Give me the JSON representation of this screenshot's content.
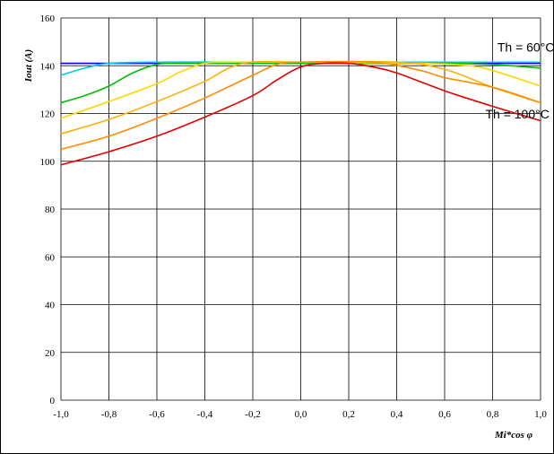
{
  "chart_data": {
    "type": "line",
    "xlabel": "Mi*cos φ",
    "ylabel": "Iout (A)",
    "xlim": [
      -1.0,
      1.0
    ],
    "ylim": [
      0,
      160
    ],
    "xticks": [
      "-1,0",
      "-0,8",
      "-0,6",
      "-0,4",
      "-0,2",
      "0,0",
      "0,2",
      "0,4",
      "0,6",
      "0,8",
      "1,0"
    ],
    "yticks": [
      "0",
      "20",
      "40",
      "60",
      "80",
      "100",
      "120",
      "140",
      "160"
    ],
    "grid": true,
    "annotations": [
      {
        "text": "Th = 60°C",
        "x": 0.82,
        "y": 146
      },
      {
        "text": "Th = 100°C",
        "x": 0.77,
        "y": 118
      }
    ],
    "series": [
      {
        "color": "#0000ff",
        "points": [
          [
            -1.0,
            141
          ],
          [
            -0.5,
            141
          ],
          [
            0.0,
            141
          ],
          [
            0.5,
            141
          ],
          [
            1.0,
            141
          ]
        ]
      },
      {
        "color": "#00c8e6",
        "points": [
          [
            -1.0,
            136
          ],
          [
            -0.9,
            139
          ],
          [
            -0.8,
            141
          ],
          [
            -0.6,
            141.5
          ],
          [
            -0.2,
            141.5
          ],
          [
            0.0,
            141.5
          ],
          [
            0.5,
            141.5
          ],
          [
            0.8,
            141.5
          ],
          [
            1.0,
            141.5
          ]
        ]
      },
      {
        "color": "#00c000",
        "points": [
          [
            -1.0,
            124.5
          ],
          [
            -0.9,
            127.5
          ],
          [
            -0.8,
            131.5
          ],
          [
            -0.7,
            137
          ],
          [
            -0.6,
            140.5
          ],
          [
            -0.5,
            141
          ],
          [
            0.0,
            141
          ],
          [
            0.6,
            141
          ],
          [
            0.8,
            140.5
          ],
          [
            1.0,
            139
          ]
        ]
      },
      {
        "color": "#ffd700",
        "points": [
          [
            -1.0,
            118
          ],
          [
            -0.8,
            125
          ],
          [
            -0.6,
            132.5
          ],
          [
            -0.5,
            137.5
          ],
          [
            -0.4,
            141
          ],
          [
            -0.3,
            141.5
          ],
          [
            0.0,
            141.5
          ],
          [
            0.5,
            141
          ],
          [
            0.7,
            140
          ],
          [
            0.8,
            138
          ],
          [
            1.0,
            131.5
          ]
        ]
      },
      {
        "color": "#ffb000",
        "points": [
          [
            -1.0,
            111.5
          ],
          [
            -0.8,
            117.5
          ],
          [
            -0.6,
            125
          ],
          [
            -0.4,
            133.5
          ],
          [
            -0.3,
            139
          ],
          [
            -0.2,
            141.5
          ],
          [
            0.0,
            141.5
          ],
          [
            0.4,
            141.5
          ],
          [
            0.6,
            138.5
          ],
          [
            0.8,
            131
          ],
          [
            1.0,
            124.5
          ]
        ]
      },
      {
        "color": "#ff8c00",
        "points": [
          [
            -1.0,
            105
          ],
          [
            -0.8,
            110.5
          ],
          [
            -0.6,
            118
          ],
          [
            -0.4,
            126.5
          ],
          [
            -0.2,
            136
          ],
          [
            -0.1,
            140.5
          ],
          [
            0.0,
            141.5
          ],
          [
            0.3,
            141.5
          ],
          [
            0.5,
            138
          ],
          [
            0.6,
            135
          ],
          [
            0.8,
            131
          ],
          [
            1.0,
            124.5
          ]
        ]
      },
      {
        "color": "#e00000",
        "points": [
          [
            -1.0,
            98.5
          ],
          [
            -0.8,
            104
          ],
          [
            -0.6,
            110.5
          ],
          [
            -0.4,
            118.5
          ],
          [
            -0.2,
            127.5
          ],
          [
            -0.1,
            134
          ],
          [
            0.0,
            139.5
          ],
          [
            0.1,
            141
          ],
          [
            0.2,
            141
          ],
          [
            0.3,
            139.5
          ],
          [
            0.4,
            137
          ],
          [
            0.6,
            129.5
          ],
          [
            0.8,
            123
          ],
          [
            1.0,
            117
          ]
        ]
      }
    ]
  }
}
